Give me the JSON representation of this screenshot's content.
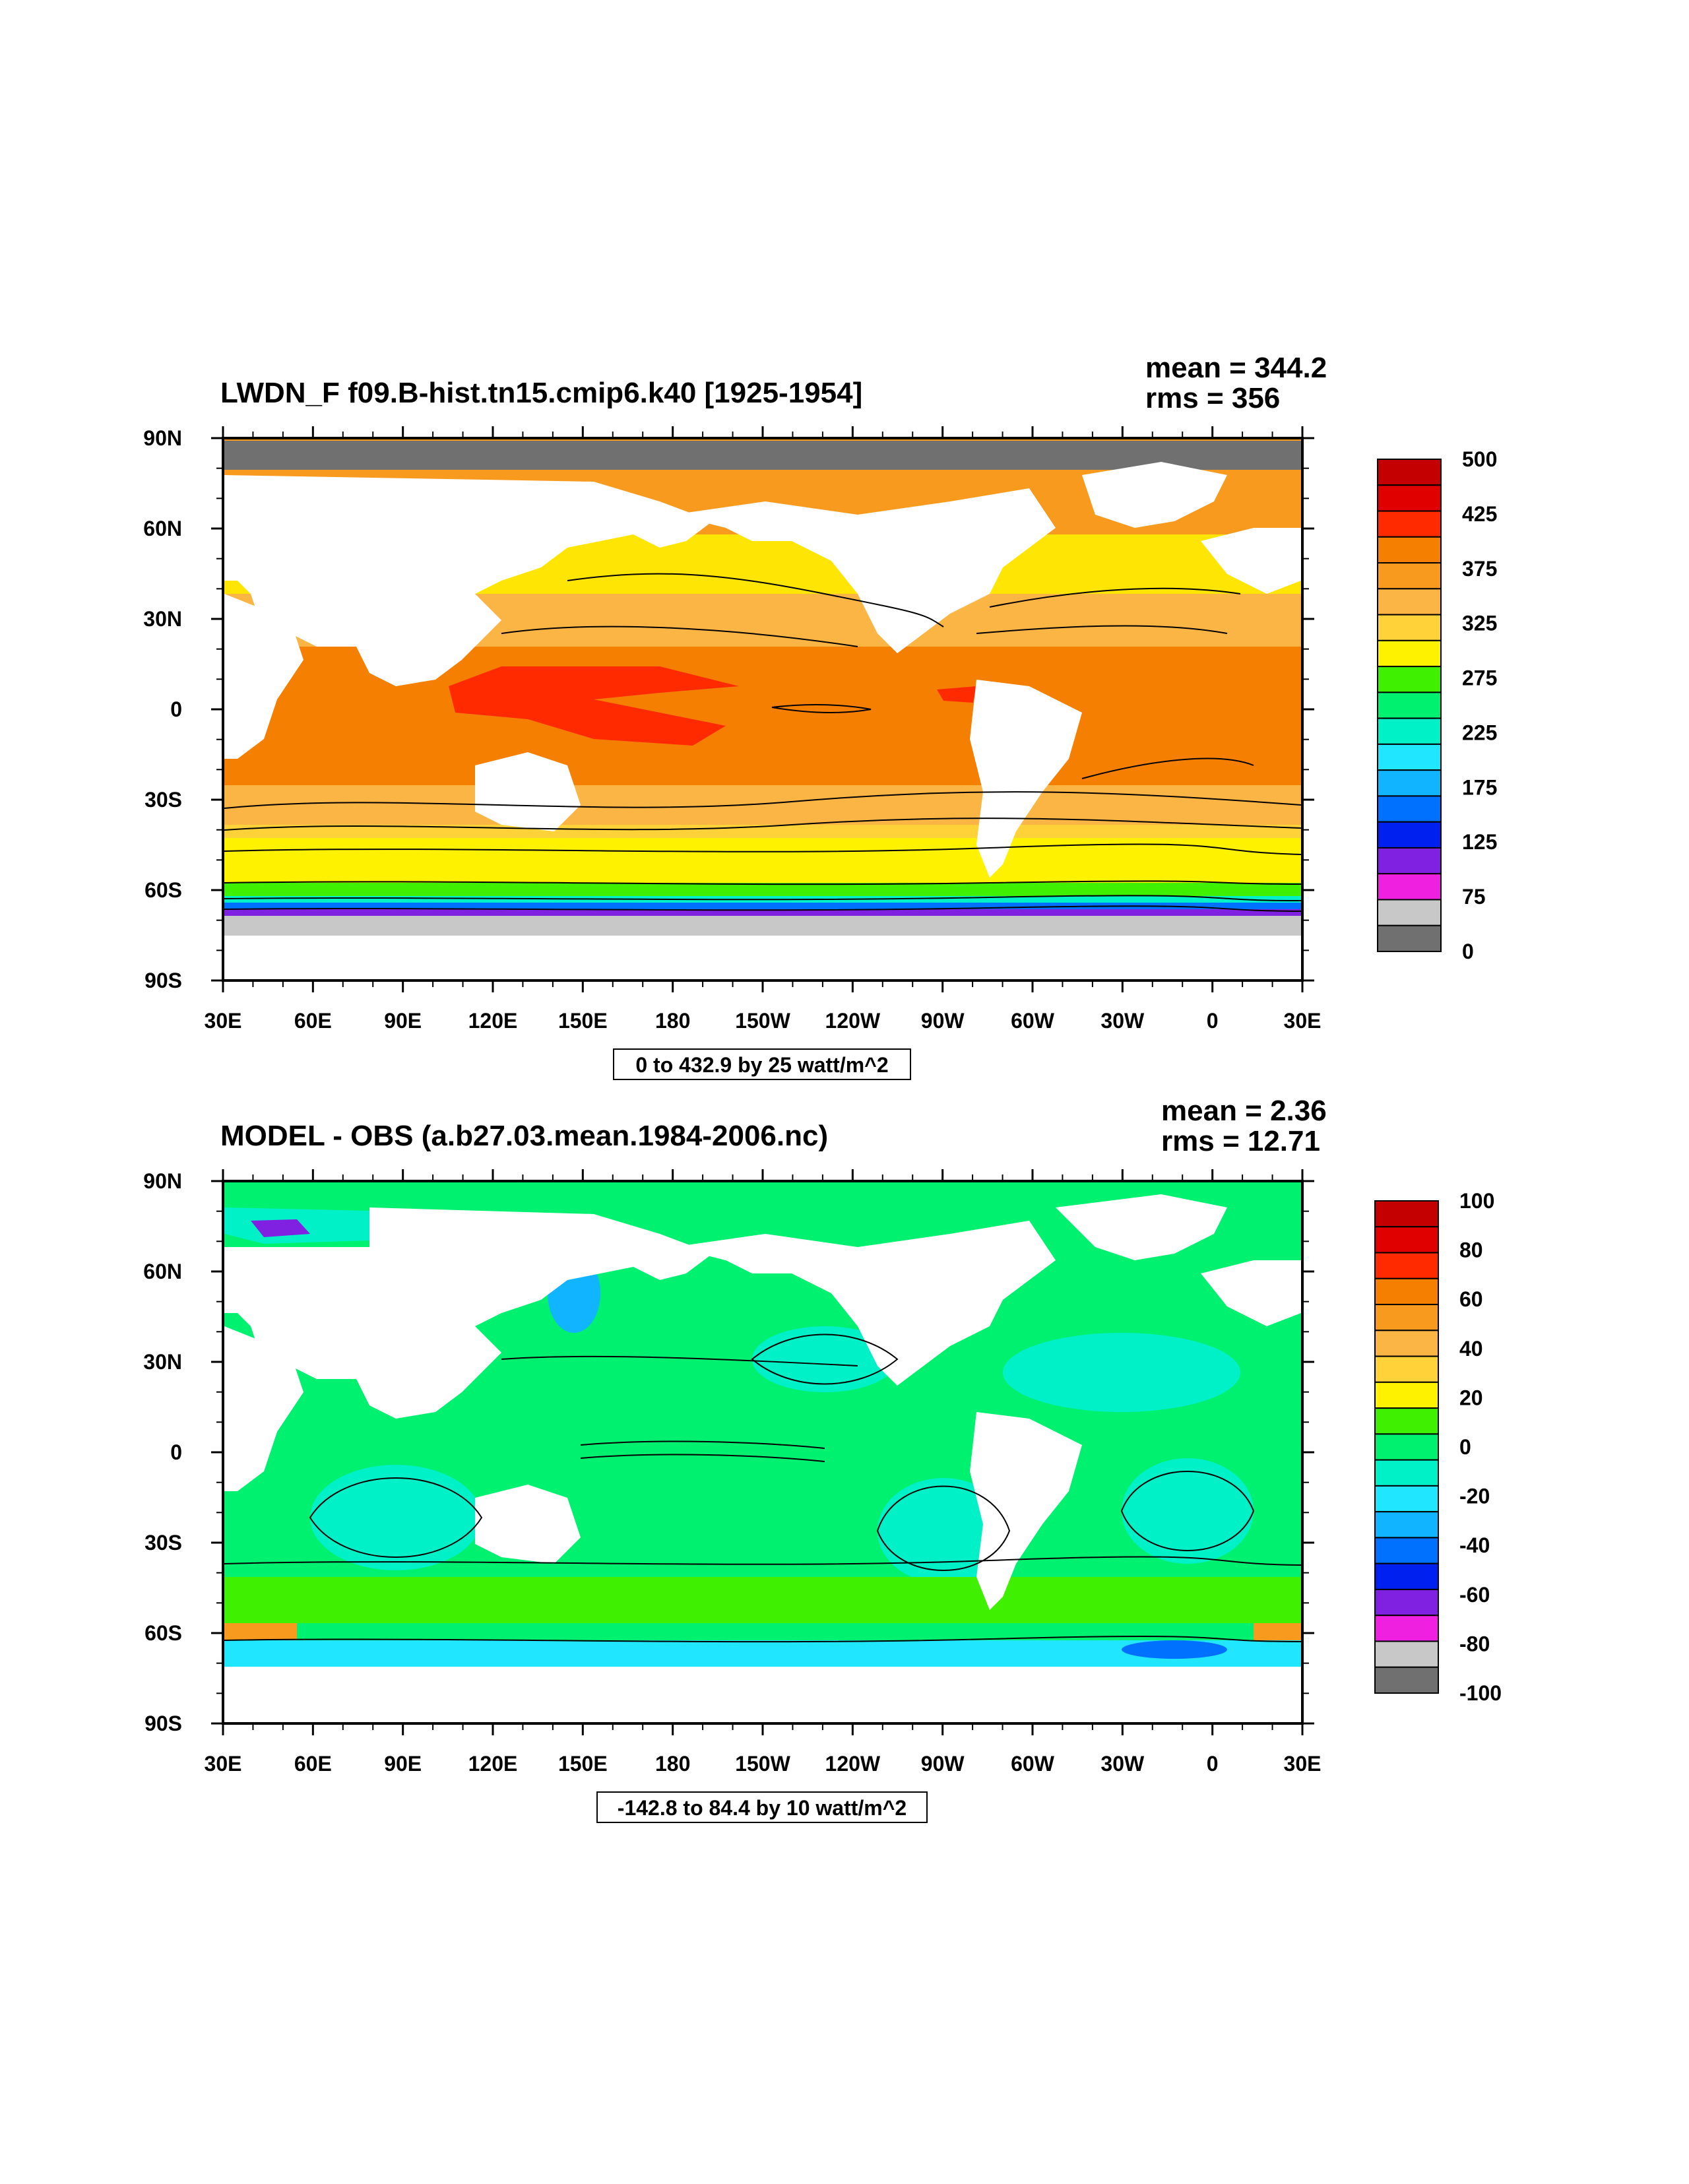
{
  "chart_data": [
    {
      "type": "heatmap",
      "title": "LWDN_F f09.B-hist.tn15.cmip6.k40 [1925-1954]",
      "mean_label": "mean = 344.2",
      "rms_label": "rms = 356",
      "info_label": "0 to 432.9 by 25 watt/m^2",
      "xlabel": "",
      "ylabel": "",
      "x_ticks": [
        "30E",
        "60E",
        "90E",
        "120E",
        "150E",
        "180",
        "150W",
        "120W",
        "90W",
        "60W",
        "30W",
        "0",
        "30E"
      ],
      "y_ticks": [
        "90N",
        "60N",
        "30N",
        "0",
        "30S",
        "60S",
        "90S"
      ],
      "ylim": [
        -90,
        90
      ],
      "colorbar_labels": [
        "500",
        "425",
        "375",
        "325",
        "275",
        "225",
        "175",
        "125",
        "75",
        "0"
      ],
      "colorbar_colors": [
        "#c40000",
        "#e00000",
        "#ff2a00",
        "#f57f00",
        "#f79a1e",
        "#fbb544",
        "#ffd23a",
        "#fff200",
        "#3ff000",
        "#00f070",
        "#00f0c8",
        "#20e6ff",
        "#10b4ff",
        "#0070ff",
        "#0020f0",
        "#8020e0",
        "#f020e0",
        "#c8c8c8",
        "#707070"
      ]
    },
    {
      "type": "heatmap",
      "title": "MODEL - OBS (a.b27.03.mean.1984-2006.nc)",
      "mean_label": "mean = 2.36",
      "rms_label": "rms = 12.71",
      "info_label": "-142.8 to 84.4 by 10 watt/m^2",
      "xlabel": "",
      "ylabel": "",
      "x_ticks": [
        "30E",
        "60E",
        "90E",
        "120E",
        "150E",
        "180",
        "150W",
        "120W",
        "90W",
        "60W",
        "30W",
        "0",
        "30E"
      ],
      "y_ticks": [
        "90N",
        "60N",
        "30N",
        "0",
        "30S",
        "60S",
        "90S"
      ],
      "ylim": [
        -90,
        90
      ],
      "colorbar_labels": [
        "100",
        "80",
        "60",
        "40",
        "20",
        "0",
        "-20",
        "-40",
        "-60",
        "-80",
        "-100"
      ],
      "colorbar_colors": [
        "#c40000",
        "#e00000",
        "#ff2a00",
        "#f57f00",
        "#f79a1e",
        "#fbb544",
        "#ffd23a",
        "#fff200",
        "#3ff000",
        "#00f070",
        "#00f0c8",
        "#20e6ff",
        "#10b4ff",
        "#0070ff",
        "#0020f0",
        "#8020e0",
        "#f020e0",
        "#c8c8c8",
        "#707070"
      ]
    }
  ]
}
